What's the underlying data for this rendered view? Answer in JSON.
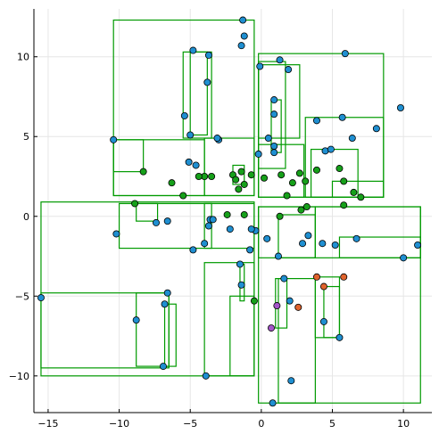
{
  "chart_data": {
    "type": "scatter",
    "title": "",
    "xlabel": "",
    "ylabel": "",
    "xlim": [
      -16,
      12
    ],
    "ylim": [
      -12.3,
      13.0
    ],
    "grid": true,
    "legend": "none",
    "x_ticks": [
      -15,
      -10,
      -5,
      0,
      5,
      10
    ],
    "y_ticks": [
      -10,
      -5,
      0,
      5,
      10
    ],
    "colors": {
      "blue": "#1f8fd1",
      "green": "#16a01a",
      "orange": "#e0632d",
      "purple": "#a355c9",
      "box_stroke": "#009a00",
      "grid": "#e6e6e6"
    },
    "boxes": [
      [
        -10.4,
        1.3,
        -0.5,
        12.3
      ],
      [
        -5.0,
        5.1,
        -3.8,
        10.3
      ],
      [
        -5.5,
        4.9,
        -3.5,
        10.3
      ],
      [
        -10.4,
        1.3,
        -4.0,
        4.8
      ],
      [
        -10.4,
        2.8,
        -8.3,
        4.8
      ],
      [
        -4.0,
        1.3,
        -0.5,
        4.9
      ],
      [
        -2.0,
        2.0,
        -1.2,
        3.2
      ],
      [
        -15.5,
        -10.0,
        -0.5,
        0.9
      ],
      [
        -15.5,
        -9.5,
        -6.5,
        -4.8
      ],
      [
        -8.8,
        -9.4,
        -6.5,
        -4.8
      ],
      [
        -6.8,
        -9.4,
        -6.0,
        -5.5
      ],
      [
        -10.0,
        -2.0,
        -3.5,
        0.8
      ],
      [
        -8.8,
        -0.3,
        -7.3,
        0.8
      ],
      [
        -4.0,
        -2.0,
        -0.5,
        0.8
      ],
      [
        -4.0,
        -10.0,
        -0.5,
        -2.9
      ],
      [
        -2.2,
        -10.0,
        -0.5,
        -5.0
      ],
      [
        -1.5,
        -5.3,
        -1.2,
        -3.0
      ],
      [
        -0.2,
        1.2,
        8.6,
        10.2
      ],
      [
        -0.2,
        4.9,
        2.7,
        9.5
      ],
      [
        -0.2,
        3.0,
        1.7,
        9.7
      ],
      [
        0.7,
        4.0,
        1.4,
        7.3
      ],
      [
        -0.2,
        1.2,
        3.0,
        4.5
      ],
      [
        3.1,
        1.2,
        8.6,
        6.2
      ],
      [
        3.5,
        1.2,
        6.8,
        4.2
      ],
      [
        5.0,
        1.2,
        8.6,
        2.2
      ],
      [
        -0.2,
        -11.7,
        11.2,
        0.6
      ],
      [
        -0.2,
        -2.6,
        3.8,
        0.6
      ],
      [
        1.2,
        -2.6,
        3.8,
        0.1
      ],
      [
        3.8,
        -2.6,
        11.2,
        0.6
      ],
      [
        5.5,
        -2.6,
        11.2,
        -1.3
      ],
      [
        1.2,
        -11.7,
        3.8,
        -3.9
      ],
      [
        3.8,
        -7.6,
        5.5,
        -3.8
      ],
      [
        4.4,
        -7.6,
        5.5,
        -4.4
      ],
      [
        1.0,
        -7.0,
        1.8,
        -3.9
      ]
    ],
    "series": [
      {
        "color": "blue",
        "points": [
          [
            -1.3,
            12.3
          ],
          [
            -1.2,
            11.3
          ],
          [
            -1.4,
            10.7
          ],
          [
            -4.8,
            10.4
          ],
          [
            -3.7,
            10.1
          ],
          [
            -3.8,
            8.4
          ],
          [
            -5.4,
            6.3
          ],
          [
            -5.0,
            5.1
          ],
          [
            -10.4,
            4.8
          ],
          [
            -3.0,
            4.8
          ],
          [
            -3.1,
            4.9
          ],
          [
            -5.1,
            3.4
          ],
          [
            -4.6,
            3.2
          ],
          [
            -0.1,
            9.4
          ],
          [
            1.3,
            9.8
          ],
          [
            1.9,
            9.2
          ],
          [
            5.9,
            10.2
          ],
          [
            0.9,
            7.3
          ],
          [
            0.9,
            6.4
          ],
          [
            0.5,
            4.9
          ],
          [
            0.9,
            4.4
          ],
          [
            0.9,
            4.0
          ],
          [
            -0.2,
            3.9
          ],
          [
            3.9,
            6.0
          ],
          [
            5.7,
            6.2
          ],
          [
            6.4,
            4.9
          ],
          [
            4.5,
            4.1
          ],
          [
            4.9,
            4.2
          ],
          [
            9.8,
            6.8
          ],
          [
            8.1,
            5.5
          ],
          [
            -10.2,
            -1.1
          ],
          [
            -7.4,
            -0.4
          ],
          [
            -6.6,
            -0.3
          ],
          [
            -4.8,
            -2.1
          ],
          [
            -3.6,
            -0.2
          ],
          [
            -3.7,
            -0.6
          ],
          [
            -3.4,
            -0.2
          ],
          [
            -4.0,
            -1.7
          ],
          [
            -0.4,
            -0.9
          ],
          [
            -0.7,
            -0.8
          ],
          [
            -0.8,
            -2.1
          ],
          [
            -2.2,
            -0.8
          ],
          [
            -1.5,
            -3.0
          ],
          [
            -1.4,
            -4.3
          ],
          [
            -6.6,
            -4.8
          ],
          [
            -6.8,
            -5.5
          ],
          [
            -8.8,
            -6.5
          ],
          [
            -6.9,
            -9.4
          ],
          [
            -15.5,
            -5.1
          ],
          [
            -3.9,
            -10.0
          ],
          [
            0.4,
            -1.4
          ],
          [
            1.2,
            -2.5
          ],
          [
            2.9,
            -1.7
          ],
          [
            3.3,
            -1.2
          ],
          [
            4.3,
            -1.7
          ],
          [
            5.2,
            -1.8
          ],
          [
            6.7,
            -1.4
          ],
          [
            11.0,
            -1.8
          ],
          [
            10.0,
            -2.6
          ],
          [
            1.6,
            -3.9
          ],
          [
            2.0,
            -5.3
          ],
          [
            4.4,
            -6.6
          ],
          [
            5.5,
            -7.6
          ],
          [
            2.1,
            -10.3
          ],
          [
            0.8,
            -11.7
          ]
        ]
      },
      {
        "color": "green",
        "points": [
          [
            -8.3,
            2.8
          ],
          [
            -6.3,
            2.1
          ],
          [
            -5.5,
            1.3
          ],
          [
            -4.0,
            2.5
          ],
          [
            -4.4,
            2.5
          ],
          [
            -3.5,
            2.5
          ],
          [
            -2.0,
            2.6
          ],
          [
            -1.8,
            2.3
          ],
          [
            -1.4,
            2.8
          ],
          [
            -0.7,
            2.6
          ],
          [
            -1.6,
            1.7
          ],
          [
            -1.2,
            2.0
          ],
          [
            0.2,
            2.4
          ],
          [
            1.4,
            2.6
          ],
          [
            2.7,
            2.7
          ],
          [
            3.1,
            2.2
          ],
          [
            2.2,
            2.1
          ],
          [
            1.8,
            1.3
          ],
          [
            3.9,
            2.9
          ],
          [
            5.5,
            3.0
          ],
          [
            5.8,
            2.2
          ],
          [
            6.5,
            1.5
          ],
          [
            7.0,
            1.2
          ],
          [
            -8.9,
            0.8
          ],
          [
            -2.4,
            0.1
          ],
          [
            -1.2,
            0.1
          ],
          [
            1.3,
            0.0
          ],
          [
            2.8,
            0.4
          ],
          [
            3.2,
            0.6
          ],
          [
            5.8,
            0.7
          ],
          [
            -0.5,
            -5.3
          ]
        ]
      },
      {
        "color": "orange",
        "points": [
          [
            3.9,
            -3.8
          ],
          [
            4.4,
            -4.4
          ],
          [
            5.8,
            -3.8
          ],
          [
            2.6,
            -5.7
          ]
        ]
      },
      {
        "color": "purple",
        "points": [
          [
            1.1,
            -5.6
          ],
          [
            0.7,
            -7.0
          ]
        ]
      }
    ]
  }
}
